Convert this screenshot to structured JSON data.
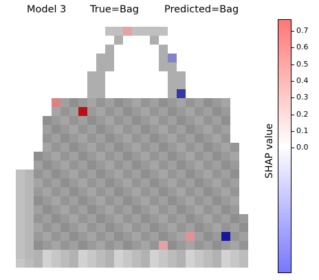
{
  "chart_data": {
    "type": "heatmap",
    "title_left": "Model 3",
    "title_true": "True=Bag",
    "title_pred": "Predicted=Bag",
    "colorbar": {
      "label": "SHAP value",
      "range": [
        -0.75,
        0.77
      ],
      "ticks": [
        "0.0",
        "0.1",
        "0.2",
        "0.3",
        "0.4",
        "0.5",
        "0.6",
        "0.7"
      ],
      "tick_values": [
        0.0,
        0.1,
        0.2,
        0.3,
        0.4,
        0.5,
        0.6,
        0.7
      ],
      "cmap": [
        "#7777ff",
        "#ffffff",
        "#ff7777"
      ]
    },
    "image_size": [
      28,
      28
    ],
    "highlighted_pixels": [
      {
        "row": 10,
        "col": 8,
        "shap": 0.77
      },
      {
        "row": 24,
        "col": 24,
        "shap": -0.75
      },
      {
        "row": 8,
        "col": 19,
        "shap": -0.65
      },
      {
        "row": 4,
        "col": 18,
        "shap": -0.4
      },
      {
        "row": 1,
        "col": 13,
        "shap": 0.3
      },
      {
        "row": 9,
        "col": 5,
        "shap": 0.4
      },
      {
        "row": 24,
        "col": 20,
        "shap": 0.35
      },
      {
        "row": 25,
        "col": 17,
        "shap": 0.3
      }
    ]
  }
}
